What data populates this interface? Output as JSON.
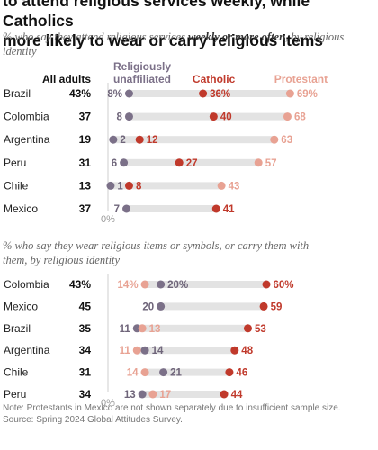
{
  "title": {
    "line1": "to attend religious services weekly, while Catholics",
    "line2": "more likely to wear or carry religious items"
  },
  "colors": {
    "unaffiliated": "#7b7088",
    "catholic": "#c0392b",
    "protestant": "#e8a293",
    "bar": "#e3e3e3",
    "axis_label": "#999999"
  },
  "chart_data": [
    {
      "type": "dot",
      "subtitle_pre": "% who say they attend religious services ",
      "subtitle_bold": "weekly or more often",
      "subtitle_post": ", by religious identity",
      "column_headers": {
        "all_adults": "All adults",
        "unaffiliated": "Religiously unaffiliated",
        "catholic": "Catholic",
        "protestant": "Protestant"
      },
      "xlim": [
        0,
        75
      ],
      "zero_label": "0%",
      "rows": [
        {
          "country": "Brazil",
          "all": "43%",
          "unaffiliated": 8,
          "catholic": 36,
          "protestant": 69,
          "labels": {
            "unaffiliated": "8%",
            "catholic": "36%",
            "protestant": "69%"
          }
        },
        {
          "country": "Colombia",
          "all": "37",
          "unaffiliated": 8,
          "catholic": 40,
          "protestant": 68,
          "labels": {
            "unaffiliated": "8",
            "catholic": "40",
            "protestant": "68"
          }
        },
        {
          "country": "Argentina",
          "all": "19",
          "unaffiliated": 2,
          "catholic": 12,
          "protestant": 63,
          "labels": {
            "unaffiliated": "2",
            "catholic": "12",
            "protestant": "63"
          }
        },
        {
          "country": "Peru",
          "all": "31",
          "unaffiliated": 6,
          "catholic": 27,
          "protestant": 57,
          "labels": {
            "unaffiliated": "6",
            "catholic": "27",
            "protestant": "57"
          }
        },
        {
          "country": "Chile",
          "all": "13",
          "unaffiliated": 1,
          "catholic": 8,
          "protestant": 43,
          "labels": {
            "unaffiliated": "1",
            "catholic": "8",
            "protestant": "43"
          }
        },
        {
          "country": "Mexico",
          "all": "37",
          "unaffiliated": 7,
          "catholic": 41,
          "protestant": null,
          "labels": {
            "unaffiliated": "7",
            "catholic": "41",
            "protestant": ""
          }
        }
      ]
    },
    {
      "type": "dot",
      "subtitle_line1": "% who say they wear religious items or symbols, or carry them with",
      "subtitle_line2": "them, by religious identity",
      "xlim": [
        0,
        75
      ],
      "zero_label": "0%",
      "rows": [
        {
          "country": "Colombia",
          "all": "43%",
          "unaffiliated": 20,
          "catholic": 60,
          "protestant": 14,
          "labels": {
            "unaffiliated": "20%",
            "catholic": "60%",
            "protestant": "14%"
          }
        },
        {
          "country": "Mexico",
          "all": "45",
          "unaffiliated": 20,
          "catholic": 59,
          "protestant": null,
          "labels": {
            "unaffiliated": "20",
            "catholic": "59",
            "protestant": ""
          }
        },
        {
          "country": "Brazil",
          "all": "35",
          "unaffiliated": 11,
          "catholic": 53,
          "protestant": 13,
          "labels": {
            "unaffiliated": "11",
            "catholic": "53",
            "protestant": "13"
          }
        },
        {
          "country": "Argentina",
          "all": "34",
          "unaffiliated": 14,
          "catholic": 48,
          "protestant": 11,
          "labels": {
            "unaffiliated": "14",
            "catholic": "48",
            "protestant": "11"
          }
        },
        {
          "country": "Chile",
          "all": "31",
          "unaffiliated": 21,
          "catholic": 46,
          "protestant": 14,
          "labels": {
            "unaffiliated": "21",
            "catholic": "46",
            "protestant": "14"
          }
        },
        {
          "country": "Peru",
          "all": "34",
          "unaffiliated": 13,
          "catholic": 44,
          "protestant": 17,
          "labels": {
            "unaffiliated": "13",
            "catholic": "44",
            "protestant": "17"
          }
        }
      ]
    }
  ],
  "notes": {
    "note": "Note: Protestants in Mexico are not shown separately due to insufficient sample size.",
    "source": "Source: Spring 2024 Global Attitudes Survey."
  }
}
